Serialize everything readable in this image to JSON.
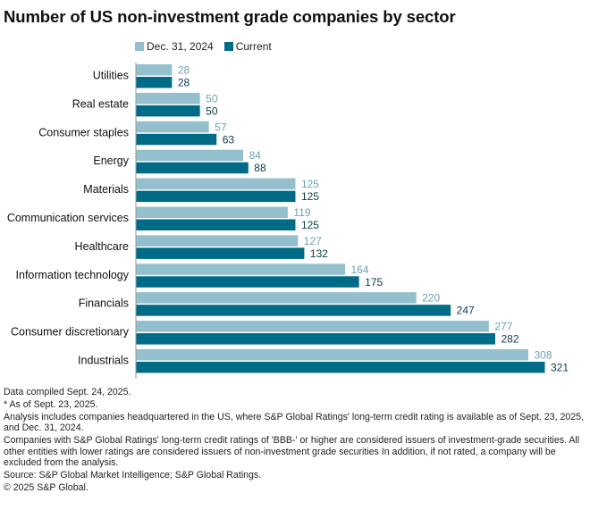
{
  "chart_data": {
    "type": "bar",
    "orientation": "horizontal",
    "title": "Number of US non-investment grade companies by sector",
    "xlabel": "",
    "ylabel": "",
    "grid": false,
    "legend_position": "top",
    "categories": [
      "Utilities",
      "Real estate",
      "Consumer staples",
      "Energy",
      "Materials",
      "Communication services",
      "Healthcare",
      "Information technology",
      "Financials",
      "Consumer discretionary",
      "Industrials"
    ],
    "series": [
      {
        "name": "Dec. 31, 2024",
        "color": "#93c0cc",
        "label_color": "#6aa3b3",
        "values": [
          28,
          50,
          57,
          84,
          125,
          119,
          127,
          164,
          220,
          277,
          308
        ]
      },
      {
        "name": "Current",
        "color": "#006b86",
        "label_color": "#0b3b4a",
        "values": [
          28,
          50,
          63,
          88,
          125,
          125,
          132,
          175,
          247,
          282,
          321
        ]
      }
    ],
    "xlim": [
      0,
      321
    ]
  },
  "notes": [
    "Data compiled Sept. 24, 2025.",
    "* As of Sept. 23, 2025.",
    "Analysis includes companies headquartered in the US, where S&P Global Ratings' long-term credit rating is available as of Sept. 23, 2025, and Dec. 31, 2024.",
    "Companies with S&P Global Ratings' long-term credit ratings of 'BBB-' or higher are considered issuers of investment-grade securities. All other entities with lower ratings are considered issuers of non-investment grade securities In addition, if not rated, a company will be excluded from the analysis.",
    "Source: S&P Global Market Intelligence; S&P Global Ratings.",
    "© 2025 S&P Global."
  ]
}
